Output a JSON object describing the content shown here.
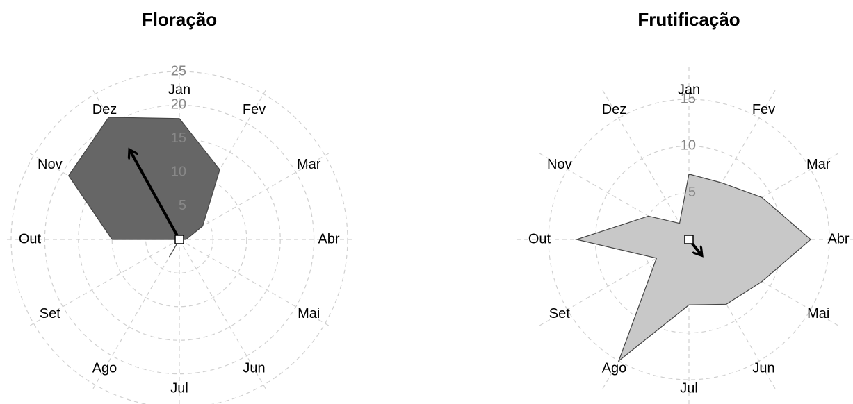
{
  "chart_data": [
    {
      "type": "radar",
      "title": "Floração",
      "categories": [
        "Jan",
        "Fev",
        "Mar",
        "Abr",
        "Mai",
        "Jun",
        "Jul",
        "Ago",
        "Set",
        "Out",
        "Nov",
        "Dez"
      ],
      "values": [
        18,
        12,
        4,
        1,
        0,
        0,
        0,
        3,
        0,
        10,
        19,
        21
      ],
      "color": "#666666",
      "ylim": [
        0,
        25
      ],
      "yticks": [
        5,
        10,
        15,
        20,
        25
      ],
      "grid": true,
      "mean_vector": {
        "angle": 331,
        "length": 15
      }
    },
    {
      "type": "radar",
      "title": "Frutificação",
      "categories": [
        "Jan",
        "Fev",
        "Mar",
        "Abr",
        "Mai",
        "Jun",
        "Jul",
        "Ago",
        "Set",
        "Out",
        "Nov",
        "Dez"
      ],
      "values": [
        7,
        7,
        9,
        13,
        9,
        8,
        7,
        15,
        4,
        12,
        5,
        2
      ],
      "color": "#c8c8c8",
      "ylim": [
        0,
        15
      ],
      "yticks": [
        5,
        10,
        15
      ],
      "grid": true,
      "mean_vector": {
        "angle": 141,
        "length": 2
      }
    }
  ]
}
